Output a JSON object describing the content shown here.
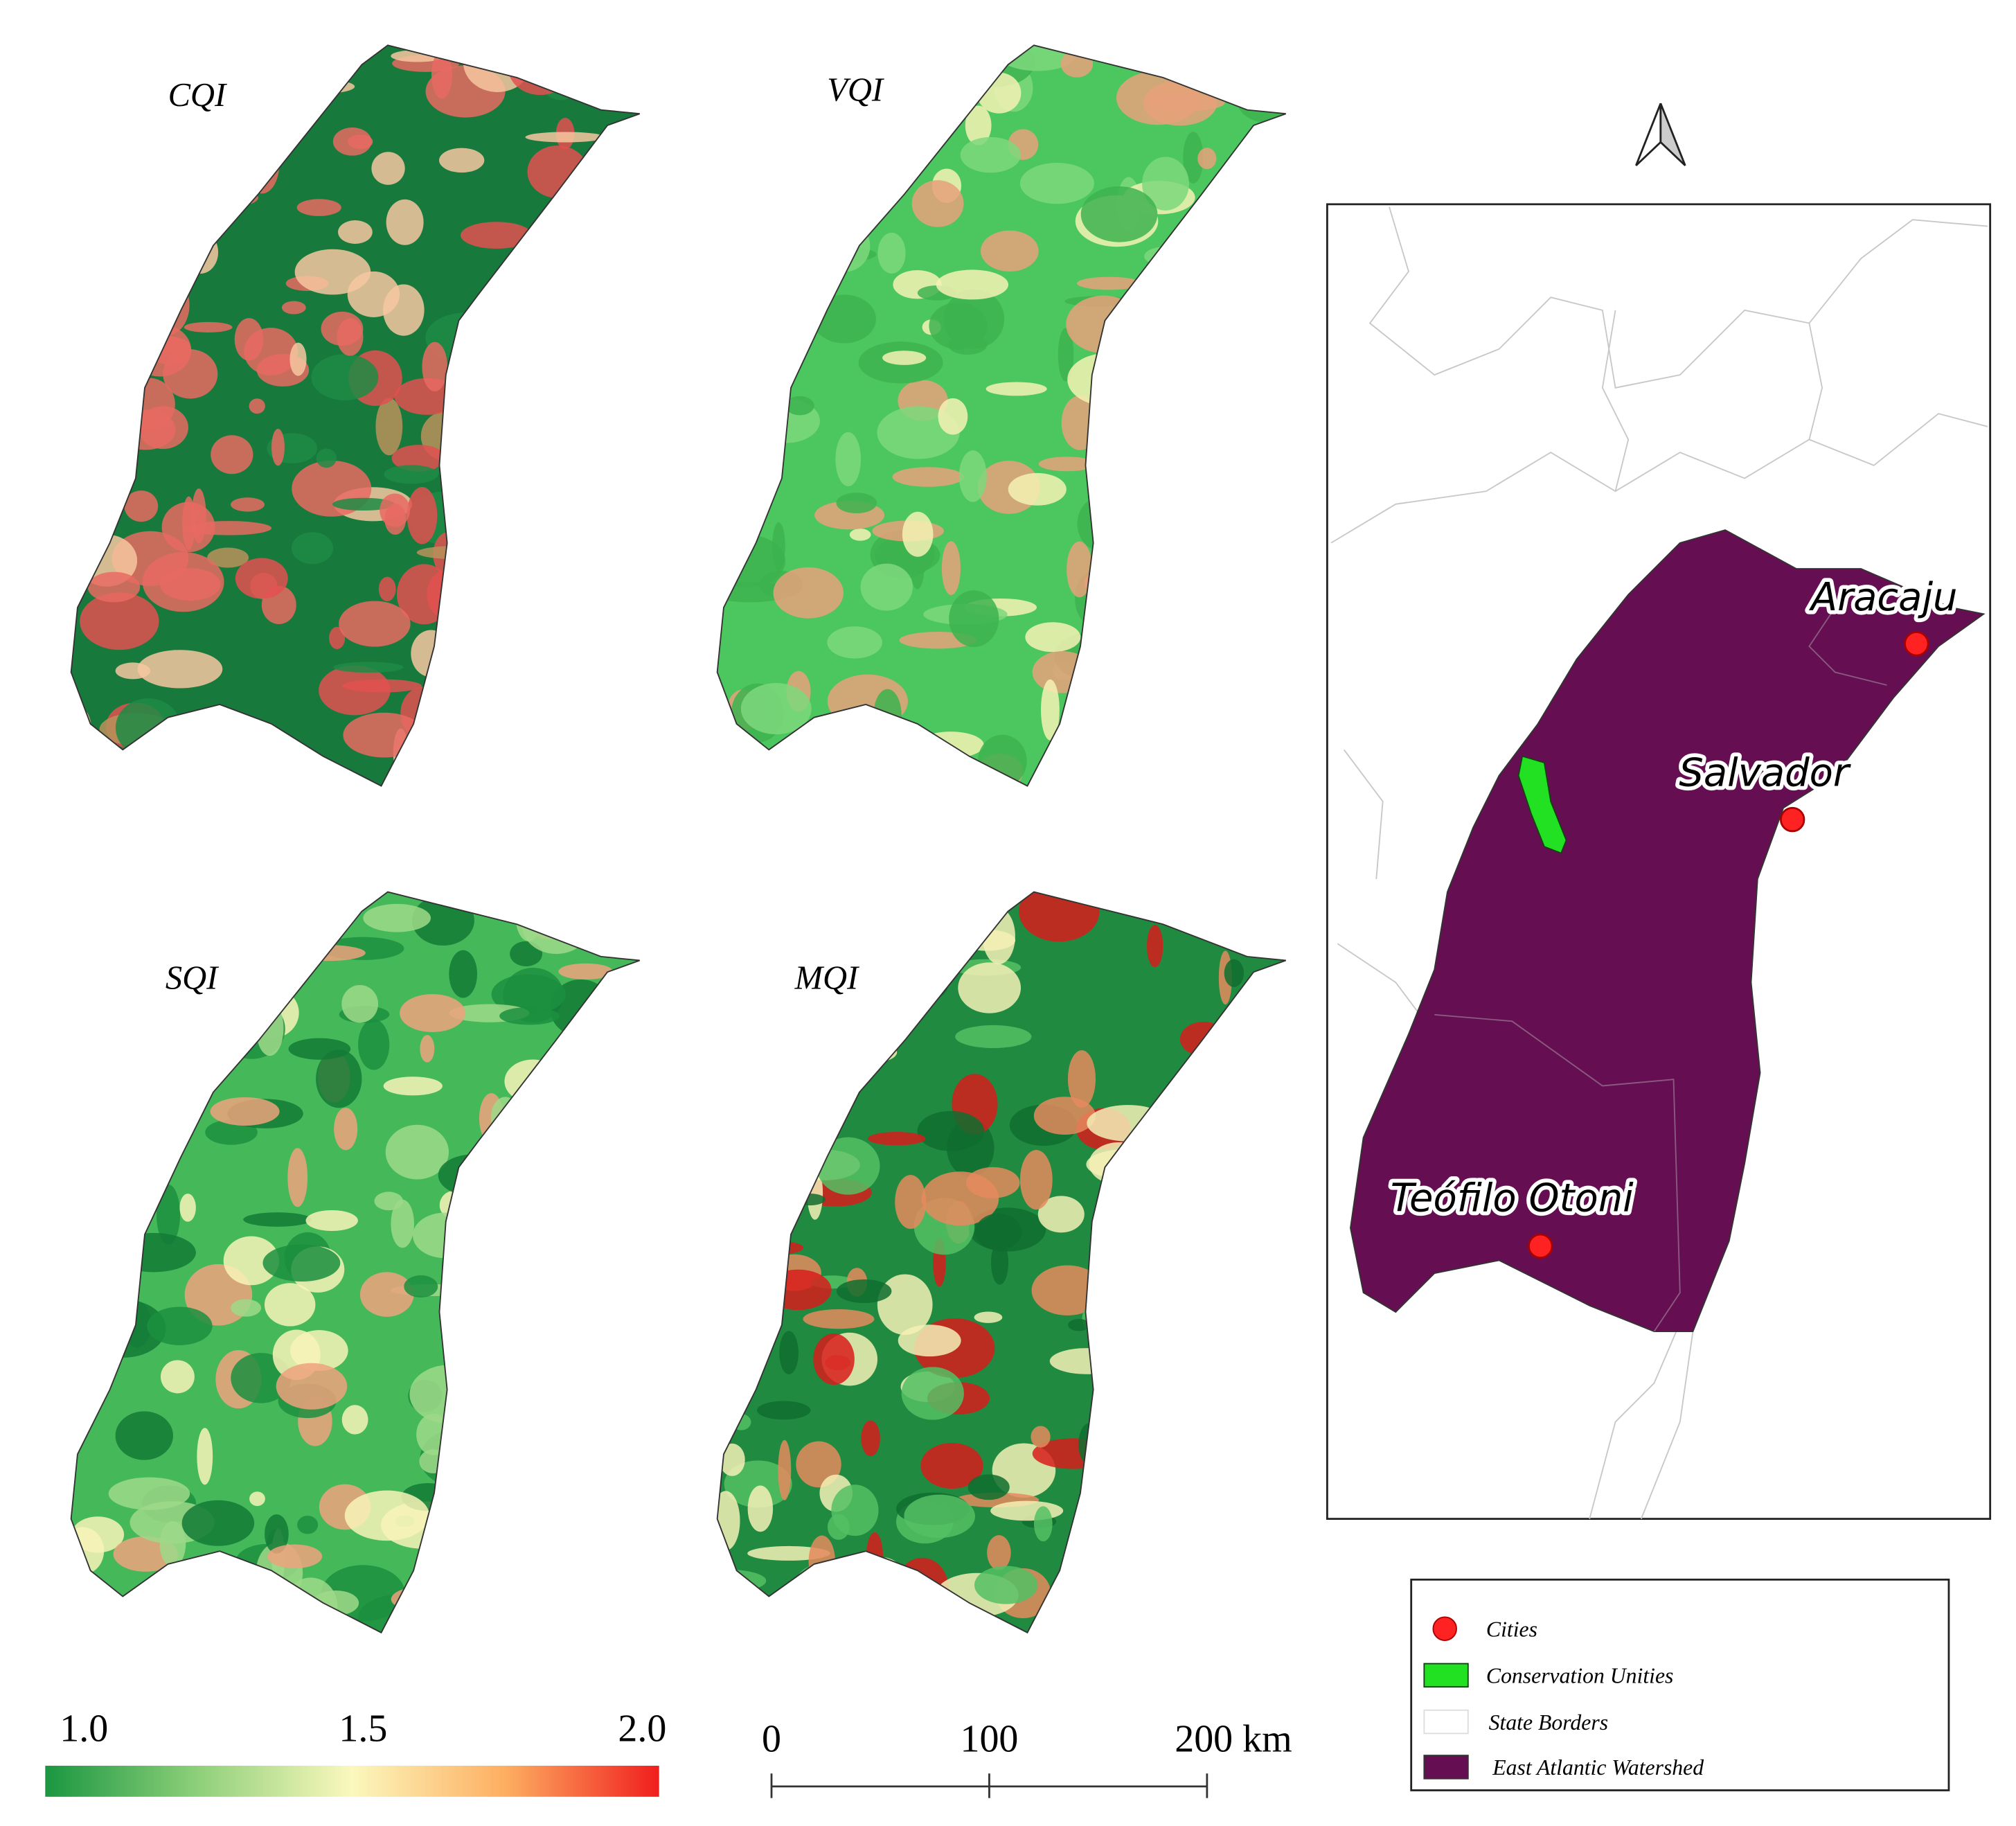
{
  "panels": [
    {
      "label": "CQI"
    },
    {
      "label": "VQI"
    },
    {
      "label": "SQI"
    },
    {
      "label": "MQI"
    }
  ],
  "colorbar": {
    "ticks": [
      {
        "value": 1.0,
        "label": "1.0"
      },
      {
        "value": 1.5,
        "label": "1.5"
      },
      {
        "value": 2.0,
        "label": "2.0"
      }
    ]
  },
  "scale_bar": {
    "ticks": [
      {
        "value": 0,
        "label": "0"
      },
      {
        "value": 100,
        "label": "100"
      },
      {
        "value": 200,
        "label": "200 km"
      }
    ]
  },
  "cities": [
    {
      "name": "Aracaju"
    },
    {
      "name": "Salvador"
    },
    {
      "name": "Teófilo Otoni"
    }
  ],
  "legend": [
    {
      "label": "Cities"
    },
    {
      "label": "Conservation Unities"
    },
    {
      "label": "State Borders"
    },
    {
      "label": "East Atlantic Watershed"
    }
  ]
}
